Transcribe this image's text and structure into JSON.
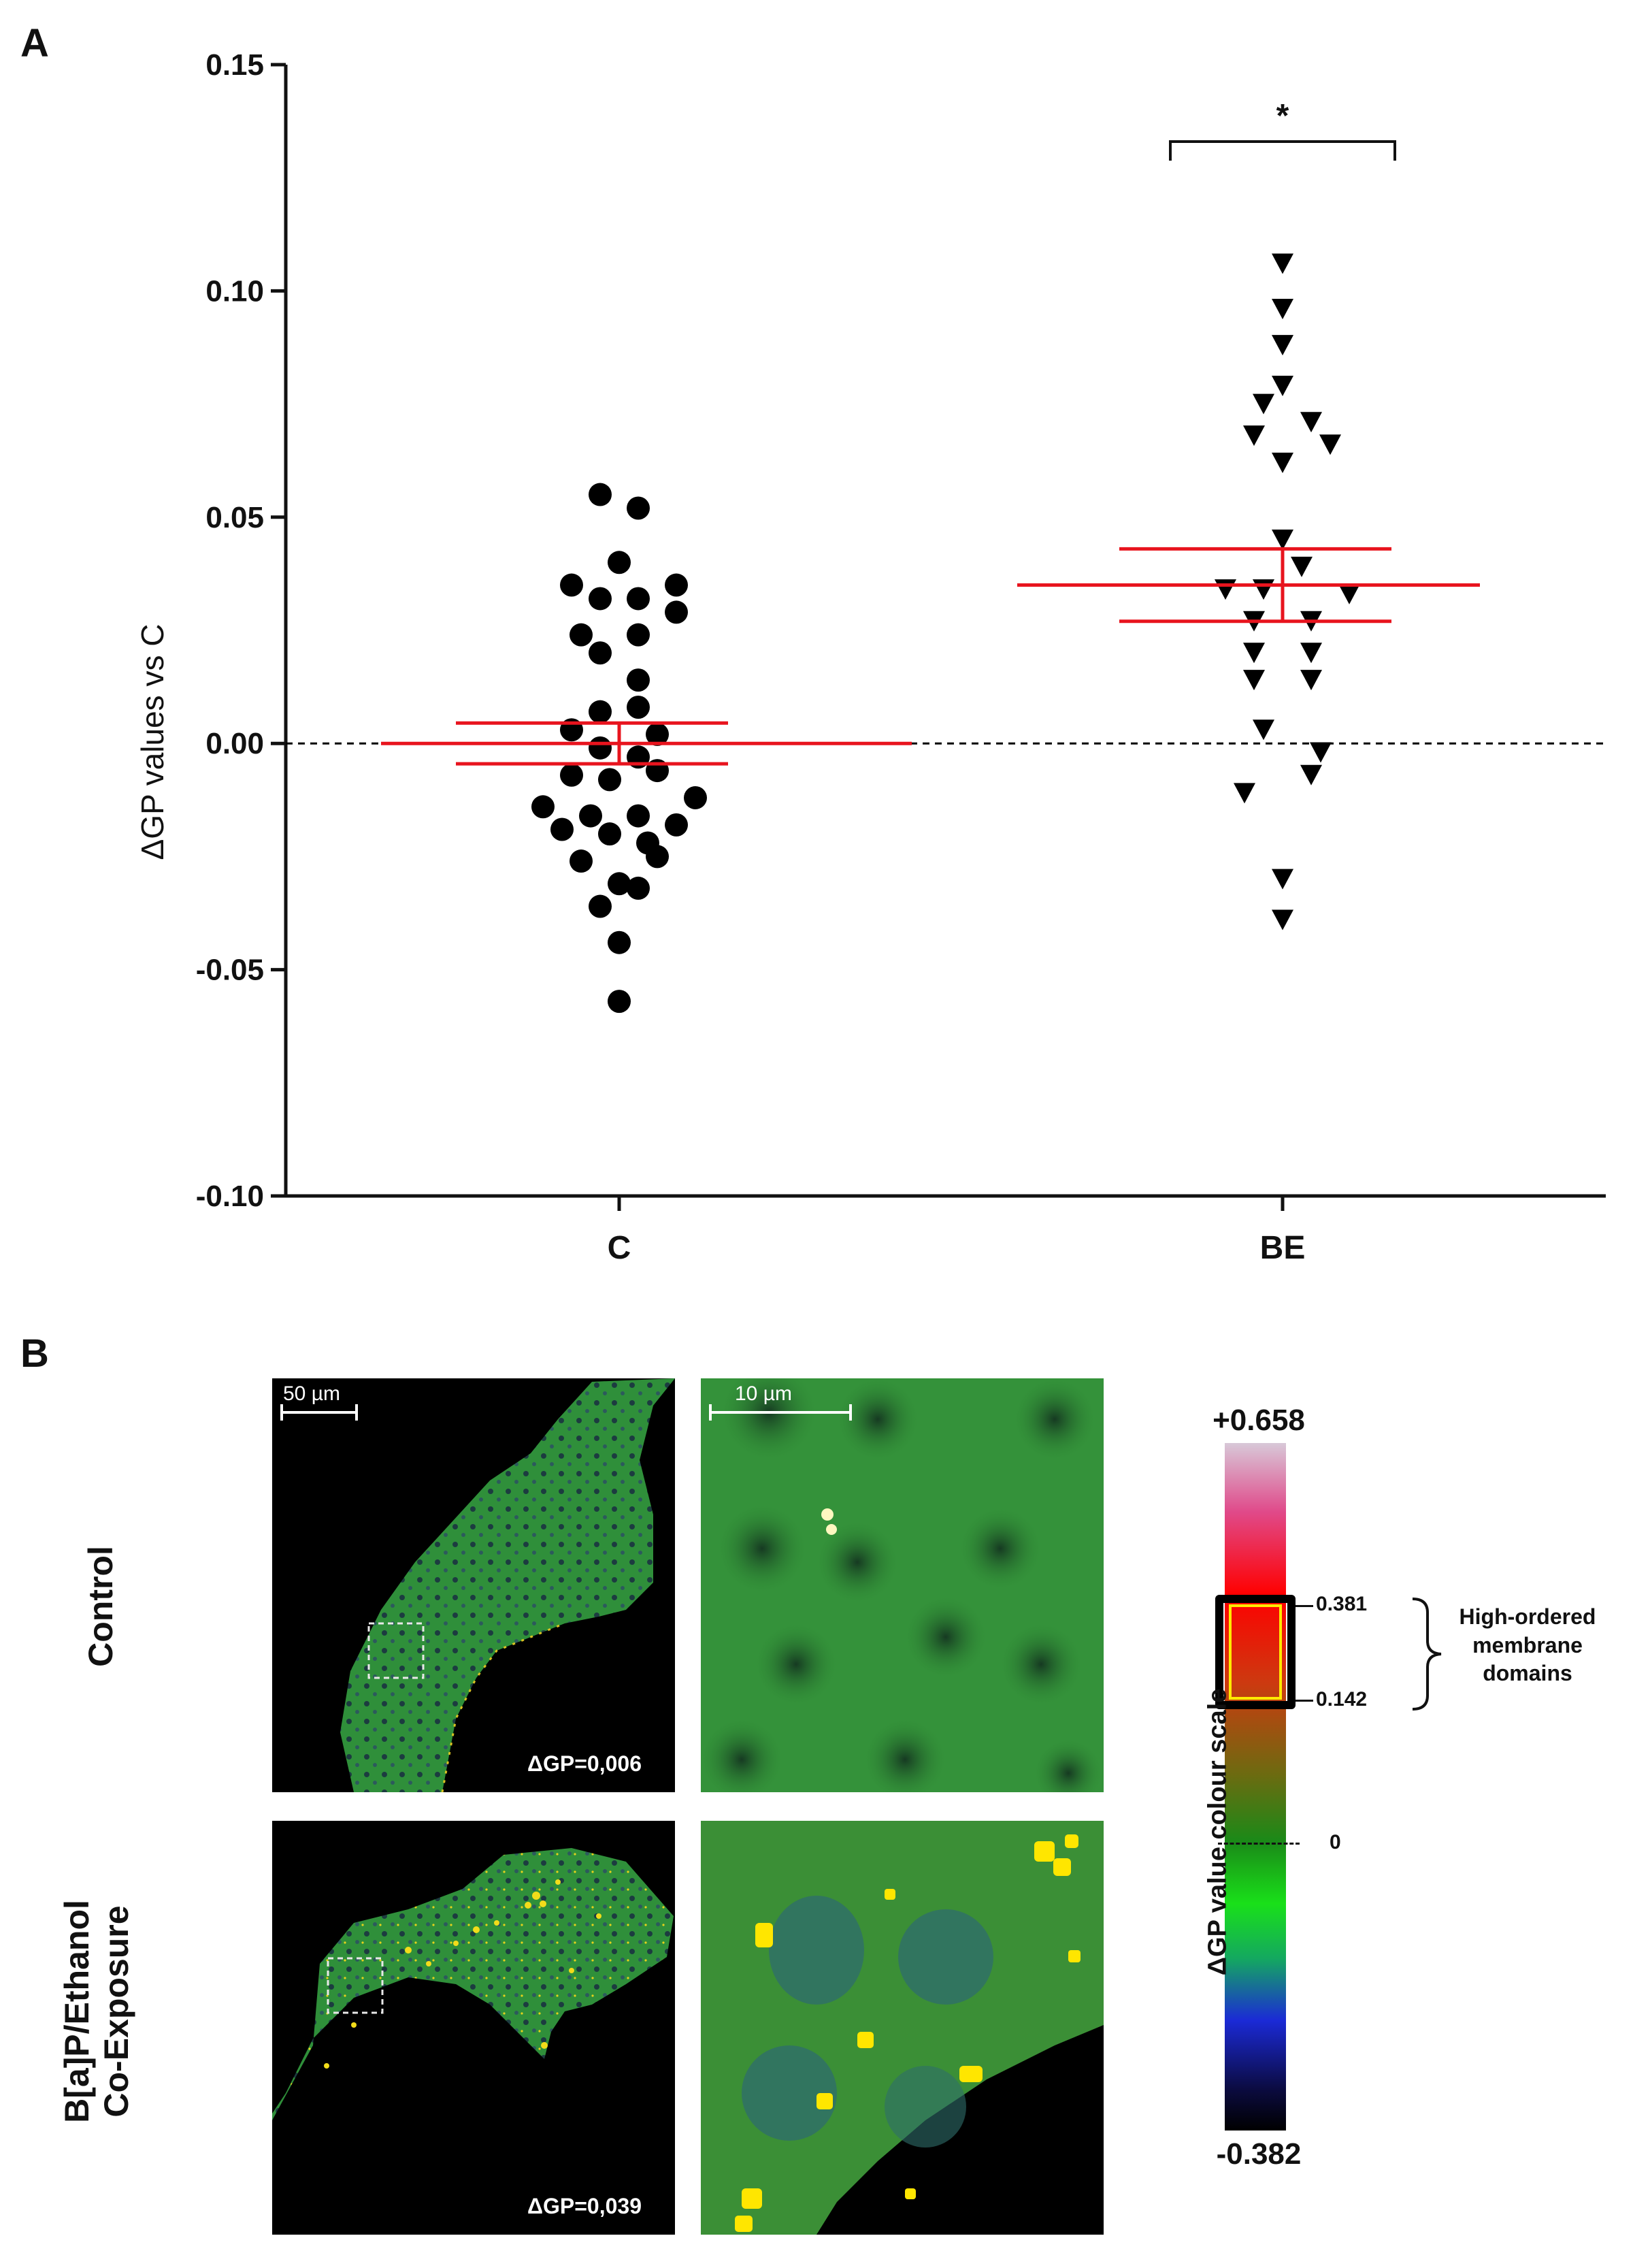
{
  "panel_a_label": "A",
  "panel_b_label": "B",
  "chart_data": {
    "type": "scatter",
    "title": "",
    "xlabel": "",
    "ylabel": "ΔGP values vs C",
    "ylim": [
      -0.1,
      0.15
    ],
    "yticks": [
      "0.15",
      "0.10",
      "0.05",
      "0.00",
      "-0.05",
      "-0.10"
    ],
    "ytick_values": [
      0.15,
      0.1,
      0.05,
      0.0,
      -0.05,
      -0.1
    ],
    "categories": [
      "C",
      "BE"
    ],
    "significance": "*",
    "colors": {
      "points": "#000000",
      "error_bars": "#e8141e",
      "zero_line": "#000000"
    },
    "series": [
      {
        "name": "C",
        "marker": "circle",
        "mean": 0.0,
        "sem": 0.0045,
        "points": [
          [
            -0.02,
            0.055
          ],
          [
            0.02,
            0.052
          ],
          [
            0.0,
            0.04
          ],
          [
            -0.05,
            0.035
          ],
          [
            0.06,
            0.035
          ],
          [
            -0.02,
            0.032
          ],
          [
            0.02,
            0.032
          ],
          [
            0.06,
            0.029
          ],
          [
            -0.04,
            0.024
          ],
          [
            0.02,
            0.024
          ],
          [
            -0.02,
            0.02
          ],
          [
            0.02,
            0.014
          ],
          [
            0.02,
            0.008
          ],
          [
            -0.02,
            0.007
          ],
          [
            -0.05,
            0.003
          ],
          [
            0.04,
            0.002
          ],
          [
            -0.02,
            -0.001
          ],
          [
            0.02,
            -0.003
          ],
          [
            -0.05,
            -0.007
          ],
          [
            -0.01,
            -0.008
          ],
          [
            0.04,
            -0.006
          ],
          [
            0.08,
            -0.012
          ],
          [
            -0.08,
            -0.014
          ],
          [
            -0.03,
            -0.016
          ],
          [
            0.02,
            -0.016
          ],
          [
            0.06,
            -0.018
          ],
          [
            -0.06,
            -0.019
          ],
          [
            -0.01,
            -0.02
          ],
          [
            0.03,
            -0.022
          ],
          [
            -0.04,
            -0.026
          ],
          [
            0.04,
            -0.025
          ],
          [
            0.0,
            -0.031
          ],
          [
            0.02,
            -0.032
          ],
          [
            -0.02,
            -0.036
          ],
          [
            0.0,
            -0.044
          ],
          [
            0.0,
            -0.057
          ]
        ]
      },
      {
        "name": "BE",
        "marker": "triangle-down",
        "mean": 0.035,
        "sem": 0.008,
        "points": [
          [
            0.0,
            0.106
          ],
          [
            0.0,
            0.096
          ],
          [
            0.0,
            0.088
          ],
          [
            0.0,
            0.079
          ],
          [
            -0.02,
            0.075
          ],
          [
            0.03,
            0.071
          ],
          [
            -0.03,
            0.068
          ],
          [
            0.05,
            0.066
          ],
          [
            0.0,
            0.062
          ],
          [
            0.0,
            0.045
          ],
          [
            0.02,
            0.039
          ],
          [
            -0.06,
            0.034
          ],
          [
            -0.02,
            0.034
          ],
          [
            0.07,
            0.033
          ],
          [
            -0.03,
            0.027
          ],
          [
            0.03,
            0.027
          ],
          [
            -0.03,
            0.02
          ],
          [
            0.03,
            0.02
          ],
          [
            -0.03,
            0.014
          ],
          [
            0.03,
            0.014
          ],
          [
            -0.02,
            0.003
          ],
          [
            0.04,
            -0.002
          ],
          [
            -0.04,
            -0.011
          ],
          [
            0.03,
            -0.007
          ],
          [
            0.0,
            -0.03
          ],
          [
            0.0,
            -0.039
          ]
        ]
      }
    ]
  },
  "panel_b": {
    "row_labels": {
      "control": "Control",
      "exposed_line1": "B[a]P/Ethanol",
      "exposed_line2": "Co-Exposure"
    },
    "scale_50": "50 µm",
    "scale_10": "10 µm",
    "dgp_control": "ΔGP=0,006",
    "dgp_exposed": "ΔGP=0,039",
    "colour_scale": {
      "title": "ΔGP value colour scale",
      "max": "+0.658",
      "min": "-0.382",
      "mark_high": "0.381",
      "mark_low": "0.142",
      "mark_zero": "0",
      "annotation_line1": "High-ordered",
      "annotation_line2": "membrane",
      "annotation_line3": "domains",
      "highlight_color": "#ffea00"
    }
  }
}
